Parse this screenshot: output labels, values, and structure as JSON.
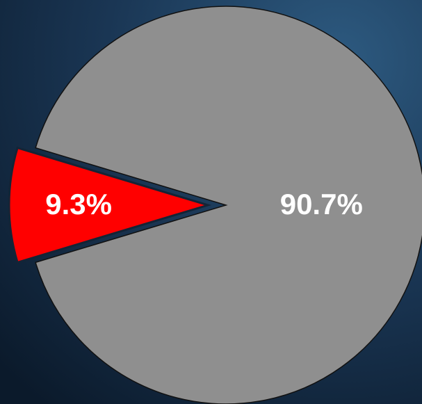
{
  "chart_data": {
    "type": "pie",
    "categories": [
      null,
      null
    ],
    "values": [
      9.3,
      90.7
    ],
    "value_labels": [
      "9.3%",
      "90.7%"
    ],
    "colors": [
      "#ff0000",
      "#8f8f8f"
    ]
  }
}
